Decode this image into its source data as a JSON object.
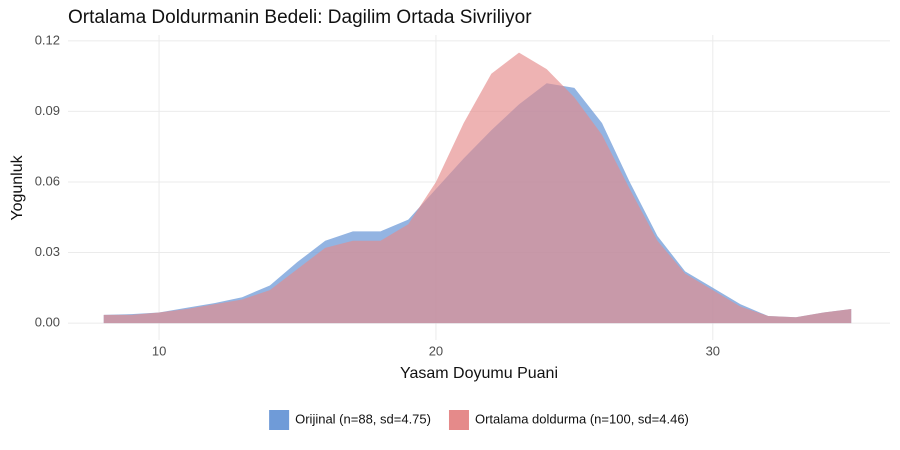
{
  "chart_data": {
    "type": "area",
    "title": "Ortalama Doldurmanin Bedeli: Dagilim Ortada Sivriliyor",
    "x_label": "Yasam Doyumu Puani",
    "y_label": "Yogunluk",
    "x": [
      8,
      9,
      10,
      11,
      12,
      13,
      14,
      15,
      16,
      17,
      18,
      19,
      20,
      21,
      22,
      23,
      24,
      25,
      26,
      27,
      28,
      29,
      30,
      31,
      32,
      33,
      34,
      35
    ],
    "series": [
      {
        "name": "Orijinal (n=88, sd=4.75)",
        "color": "#6f9bd8",
        "values": [
          0.0035,
          0.0038,
          0.0045,
          0.0065,
          0.0085,
          0.011,
          0.016,
          0.026,
          0.035,
          0.039,
          0.039,
          0.044,
          0.057,
          0.07,
          0.082,
          0.093,
          0.102,
          0.1,
          0.085,
          0.06,
          0.037,
          0.022,
          0.015,
          0.008,
          0.003,
          0.0025,
          0.0045,
          0.006
        ]
      },
      {
        "name": "Ortalama doldurma (n=100, sd=4.46)",
        "color": "#e58a8a",
        "values": [
          0.0035,
          0.0035,
          0.0045,
          0.006,
          0.008,
          0.01,
          0.014,
          0.023,
          0.032,
          0.035,
          0.035,
          0.042,
          0.06,
          0.085,
          0.106,
          0.115,
          0.108,
          0.096,
          0.08,
          0.057,
          0.035,
          0.021,
          0.014,
          0.007,
          0.003,
          0.0025,
          0.0045,
          0.006
        ]
      }
    ],
    "xlim": [
      6.71,
      36.4
    ],
    "ylim": [
      -0.0072,
      0.1225
    ],
    "xticks": [
      10,
      20,
      30
    ],
    "yticks": [
      {
        "value": 0,
        "label": "0.00"
      },
      0.03,
      0.06,
      0.09,
      0.12
    ],
    "grid": true,
    "legend": "bottom"
  }
}
